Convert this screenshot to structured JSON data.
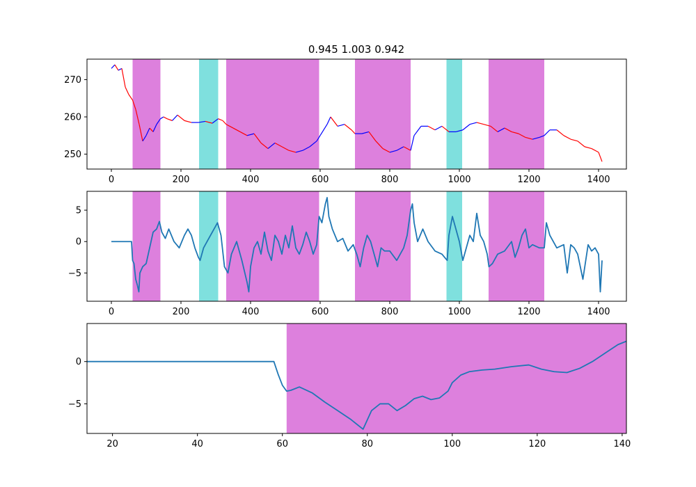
{
  "figure": {
    "title": "0.945 1.003 0.942"
  },
  "colors": {
    "magenta_region": "#dd80dd",
    "cyan_region": "#7fe0de",
    "line_blue": "#1f77b4",
    "price_up": "#0000ff",
    "price_down": "#ff0000"
  },
  "chart_data": [
    {
      "type": "line",
      "title": "0.945 1.003 0.942",
      "xlim": [
        -70,
        1480
      ],
      "ylim": [
        246,
        275.5
      ],
      "xticks": [
        0,
        200,
        400,
        600,
        800,
        1000,
        1200,
        1400
      ],
      "yticks": [
        250,
        260,
        270
      ],
      "regions": [
        {
          "x0": 61,
          "x1": 141,
          "color": "magenta"
        },
        {
          "x0": 252,
          "x1": 307,
          "color": "cyan"
        },
        {
          "x0": 330,
          "x1": 597,
          "color": "magenta"
        },
        {
          "x0": 700,
          "x1": 860,
          "color": "magenta"
        },
        {
          "x0": 963,
          "x1": 1008,
          "color": "cyan"
        },
        {
          "x0": 1084,
          "x1": 1244,
          "color": "magenta"
        }
      ],
      "series": [
        {
          "x": [
            0,
            10,
            20,
            30,
            40,
            50,
            61,
            70,
            80,
            90,
            100,
            110,
            120,
            130,
            141,
            150,
            160,
            175,
            190,
            210,
            230,
            250,
            270,
            290,
            307,
            320,
            330,
            350,
            370,
            390,
            410,
            430,
            450,
            470,
            490,
            510,
            530,
            550,
            570,
            590,
            600,
            620,
            630,
            650,
            670,
            690,
            700,
            720,
            740,
            760,
            780,
            800,
            820,
            840,
            860,
            870,
            890,
            910,
            930,
            950,
            970,
            990,
            1010,
            1030,
            1050,
            1070,
            1090,
            1110,
            1130,
            1150,
            1170,
            1190,
            1210,
            1230,
            1244,
            1260,
            1280,
            1300,
            1320,
            1340,
            1360,
            1380,
            1400,
            1410
          ],
          "y": [
            273,
            274,
            272.5,
            273,
            268,
            266,
            264.5,
            262,
            258,
            253.5,
            255,
            257,
            256,
            258,
            259.5,
            260,
            259.5,
            259,
            260.5,
            259,
            258.5,
            258.5,
            258.8,
            258.3,
            259.5,
            259,
            258,
            257,
            256,
            255,
            255.5,
            253,
            251.5,
            253,
            252,
            251,
            250.5,
            251,
            252,
            253.5,
            255,
            258,
            260,
            257.5,
            258,
            256.5,
            255.5,
            255.5,
            256,
            253.5,
            251.5,
            250.5,
            251,
            252,
            251,
            255,
            257.5,
            257.5,
            256.5,
            257.5,
            256,
            256,
            256.5,
            258,
            258.5,
            258,
            257.5,
            256,
            257,
            256,
            255.5,
            254.5,
            254,
            254.5,
            255,
            256.5,
            256.5,
            255,
            254,
            253.5,
            252,
            251.5,
            250.5,
            248
          ]
        }
      ]
    },
    {
      "type": "line",
      "title": "",
      "xlim": [
        -70,
        1480
      ],
      "ylim": [
        -9.5,
        8
      ],
      "xticks": [
        0,
        200,
        400,
        600,
        800,
        1000,
        1200,
        1400
      ],
      "yticks": [
        -5,
        0,
        5
      ],
      "regions": [
        {
          "x0": 61,
          "x1": 141,
          "color": "magenta"
        },
        {
          "x0": 252,
          "x1": 307,
          "color": "cyan"
        },
        {
          "x0": 330,
          "x1": 597,
          "color": "magenta"
        },
        {
          "x0": 700,
          "x1": 860,
          "color": "magenta"
        },
        {
          "x0": 963,
          "x1": 1008,
          "color": "cyan"
        },
        {
          "x0": 1084,
          "x1": 1244,
          "color": "magenta"
        }
      ],
      "series": [
        {
          "x": [
            0,
            58,
            61,
            65,
            70,
            75,
            79,
            82,
            90,
            100,
            110,
            120,
            130,
            138,
            145,
            155,
            165,
            180,
            195,
            210,
            220,
            230,
            240,
            250,
            255,
            265,
            275,
            285,
            295,
            305,
            315,
            325,
            335,
            345,
            360,
            375,
            390,
            395,
            400,
            410,
            420,
            430,
            440,
            450,
            460,
            470,
            480,
            490,
            500,
            510,
            520,
            530,
            540,
            550,
            560,
            570,
            580,
            590,
            597,
            605,
            615,
            620,
            625,
            635,
            650,
            665,
            680,
            695,
            705,
            715,
            725,
            735,
            745,
            755,
            765,
            775,
            785,
            800,
            820,
            840,
            850,
            860,
            865,
            870,
            880,
            895,
            910,
            930,
            950,
            965,
            970,
            980,
            990,
            1000,
            1010,
            1020,
            1030,
            1040,
            1050,
            1060,
            1070,
            1080,
            1085,
            1095,
            1110,
            1130,
            1150,
            1160,
            1170,
            1180,
            1190,
            1200,
            1210,
            1230,
            1244,
            1250,
            1260,
            1280,
            1300,
            1310,
            1320,
            1330,
            1340,
            1355,
            1370,
            1380,
            1390,
            1400,
            1405,
            1410
          ],
          "y": [
            0,
            0,
            -3,
            -3.5,
            -6,
            -7,
            -8,
            -5,
            -4,
            -3.5,
            -1,
            1.5,
            2,
            3.2,
            1.5,
            0.5,
            2,
            0,
            -1,
            1,
            2,
            1,
            -1,
            -2.5,
            -3,
            -1,
            0,
            1,
            2,
            3,
            1,
            -4,
            -5,
            -2,
            0,
            -3,
            -6.5,
            -8,
            -4,
            -1,
            0,
            -2,
            1.5,
            -1.5,
            -3,
            1,
            0,
            -2,
            1,
            -1,
            2.5,
            -1,
            -2,
            -0.5,
            1.5,
            0,
            -2,
            -0.5,
            4,
            3,
            6,
            7,
            4,
            2,
            0,
            0.5,
            -1.5,
            -0.5,
            -2,
            -4,
            -1,
            1,
            0,
            -2,
            -4,
            -1,
            -1.5,
            -1.5,
            -3,
            -1,
            1,
            5,
            6,
            3,
            0,
            2,
            0,
            -1.5,
            -2,
            -3,
            1,
            4,
            2,
            0,
            -3,
            -1,
            1,
            0,
            4.5,
            1,
            0,
            -2,
            -4,
            -3.5,
            -2,
            -1.5,
            0,
            -2.5,
            -1,
            1,
            2,
            -1,
            -0.5,
            -1,
            -1,
            3,
            1,
            -1,
            -0.5,
            -5,
            -0.5,
            -1,
            -2,
            -6,
            -0.5,
            -1.5,
            -1,
            -2,
            -8,
            -3
          ]
        }
      ]
    },
    {
      "type": "line",
      "title": "",
      "xlim": [
        14,
        141
      ],
      "ylim": [
        -8.5,
        4.5
      ],
      "xticks": [
        20,
        40,
        60,
        80,
        100,
        120,
        140
      ],
      "yticks": [
        -5,
        0
      ],
      "regions": [
        {
          "x0": 61,
          "x1": 141,
          "color": "magenta"
        }
      ],
      "series": [
        {
          "x": [
            14,
            20,
            30,
            40,
            50,
            58,
            59,
            60,
            61,
            62,
            64,
            67,
            70,
            73,
            76,
            79,
            81,
            83,
            85,
            87,
            89,
            91,
            93,
            95,
            97,
            99,
            100,
            102,
            104,
            107,
            110,
            114,
            118,
            121,
            124,
            127,
            130,
            133,
            136,
            139,
            141
          ],
          "y": [
            0,
            0,
            0,
            0,
            0,
            0,
            -1.5,
            -2.8,
            -3.5,
            -3.4,
            -3,
            -3.7,
            -4.8,
            -5.8,
            -6.8,
            -8,
            -5.8,
            -5,
            -5,
            -5.8,
            -5.2,
            -4.4,
            -4.1,
            -4.5,
            -4.3,
            -3.5,
            -2.5,
            -1.6,
            -1.2,
            -1,
            -0.9,
            -0.6,
            -0.4,
            -0.9,
            -1.2,
            -1.3,
            -0.8,
            0,
            1,
            2,
            2.4
          ]
        }
      ]
    }
  ]
}
